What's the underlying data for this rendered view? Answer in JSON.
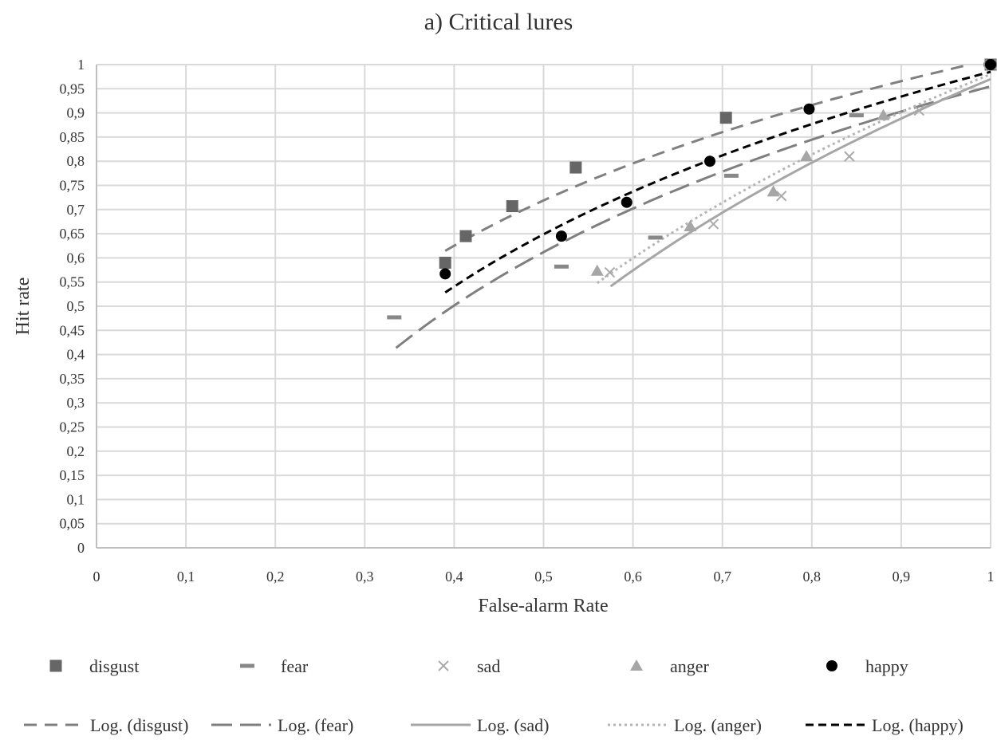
{
  "chart_data": {
    "type": "scatter",
    "title": "a) Critical lures",
    "xlabel": "False-alarm Rate",
    "ylabel": "Hit rate",
    "xlim": [
      0,
      1
    ],
    "ylim": [
      0,
      1
    ],
    "grid": true,
    "legend_position": "bottom",
    "x_ticks": [
      "0",
      "0,1",
      "0,2",
      "0,3",
      "0,4",
      "0,5",
      "0,6",
      "0,7",
      "0,8",
      "0,9",
      "1"
    ],
    "y_ticks": [
      "0",
      "0,05",
      "0,1",
      "0,15",
      "0,2",
      "0,25",
      "0,3",
      "0,35",
      "0,4",
      "0,45",
      "0,5",
      "0,55",
      "0,6",
      "0,65",
      "0,7",
      "0,75",
      "0,8",
      "0,85",
      "0,9",
      "0,95",
      "1"
    ],
    "series": [
      {
        "name": "disgust",
        "marker": "square",
        "color": "#666666",
        "points": [
          [
            0.39,
            0.59
          ],
          [
            0.413,
            0.645
          ],
          [
            0.465,
            0.707
          ],
          [
            0.536,
            0.787
          ],
          [
            0.704,
            0.89
          ],
          [
            1.0,
            1.0
          ]
        ]
      },
      {
        "name": "fear",
        "marker": "dash",
        "color": "#888888",
        "points": [
          [
            0.333,
            0.477
          ],
          [
            0.52,
            0.582
          ],
          [
            0.625,
            0.642
          ],
          [
            0.71,
            0.77
          ],
          [
            0.85,
            0.895
          ],
          [
            1.0,
            1.0
          ]
        ]
      },
      {
        "name": "sad",
        "marker": "x",
        "color": "#aaaaaa",
        "points": [
          [
            0.574,
            0.57
          ],
          [
            0.69,
            0.67
          ],
          [
            0.766,
            0.728
          ],
          [
            0.842,
            0.81
          ],
          [
            0.92,
            0.905
          ],
          [
            1.0,
            1.0
          ]
        ]
      },
      {
        "name": "anger",
        "marker": "triangle",
        "color": "#a6a6a6",
        "points": [
          [
            0.56,
            0.573
          ],
          [
            0.664,
            0.665
          ],
          [
            0.757,
            0.737
          ],
          [
            0.794,
            0.81
          ],
          [
            0.88,
            0.895
          ],
          [
            1.0,
            1.0
          ]
        ]
      },
      {
        "name": "happy",
        "marker": "circle",
        "color": "#000000",
        "points": [
          [
            0.39,
            0.567
          ],
          [
            0.52,
            0.645
          ],
          [
            0.593,
            0.715
          ],
          [
            0.686,
            0.8
          ],
          [
            0.797,
            0.908
          ],
          [
            1.0,
            1.0
          ]
        ]
      }
    ],
    "trendlines": [
      {
        "name": "Log. (disgust)",
        "type": "logarithmic",
        "a": 1.01,
        "b": 0.42,
        "x_range": [
          0.39,
          1.0
        ],
        "color": "#808080",
        "dash": "16 10",
        "width": 3
      },
      {
        "name": "Log. (fear)",
        "type": "logarithmic",
        "a": 0.955,
        "b": 0.495,
        "x_range": [
          0.335,
          1.0
        ],
        "color": "#7f7f7f",
        "dash": "26 10",
        "width": 3
      },
      {
        "name": "Log. (sad)",
        "type": "logarithmic",
        "a": 0.97,
        "b": 0.775,
        "x_range": [
          0.575,
          1.0
        ],
        "color": "#a6a6a6",
        "dash": "none",
        "width": 3
      },
      {
        "name": "Log. (anger)",
        "type": "logarithmic",
        "a": 0.98,
        "b": 0.745,
        "x_range": [
          0.56,
          1.0
        ],
        "color": "#b5b5b5",
        "dash": "3 4",
        "width": 3
      },
      {
        "name": "Log. (happy)",
        "type": "logarithmic",
        "a": 0.985,
        "b": 0.485,
        "x_range": [
          0.39,
          1.0
        ],
        "color": "#000000",
        "dash": "10 6",
        "width": 3
      }
    ]
  }
}
